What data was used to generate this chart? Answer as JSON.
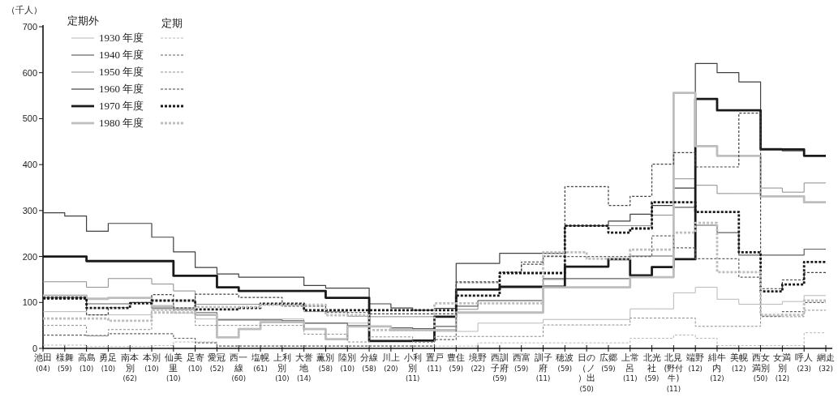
{
  "chart_data": {
    "type": "step",
    "ylabel": "（千人）",
    "legend": "top left",
    "ylim": [
      0,
      700
    ],
    "yticks": [
      0,
      100,
      200,
      300,
      400,
      500,
      600,
      700
    ],
    "annotations": [
      "定期外",
      "定期"
    ],
    "categories": [
      "池田 (04)",
      "様舞 (59)",
      "高島 (10)",
      "勇足 (10)",
      "南本別 (62)",
      "本別 (10)",
      "仙美里 (10)",
      "足寄 (10)",
      "愛冠 (52)",
      "西一線 (60)",
      "塩幌 (61)",
      "上利別 (10)",
      "大誉地 (14)",
      "薫別 (58)",
      "陸別 (10)",
      "分線 (58)",
      "川上 (20)",
      "小利別 (11)",
      "置戸 (11)",
      "豊住 (59)",
      "境野 (22)",
      "西訓子府 (59)",
      "西富 (59)",
      "訓子府 (11)",
      "穂波 (59)",
      "日の（ノ）出 (50)",
      "広郷 (59)",
      "上常呂 (11)",
      "北光社 (59)",
      "北見 (野付牛)(11)",
      "端野 (12)",
      "緋牛内 (12)",
      "美幌 (12)",
      "西女満別 (50)",
      "女満別 (12)",
      "呼人 (23)",
      "網走 (32)"
    ],
    "series": [
      {
        "name": "1930 年度",
        "color": "#b0b0b0",
        "line_style": "solid",
        "values": [
          80,
          80,
          73,
          73,
          73,
          85,
          77,
          64,
          64,
          64,
          64,
          64,
          55,
          55,
          55,
          48,
          43,
          43,
          37,
          37,
          55,
          55,
          55,
          63,
          63,
          63,
          63,
          86,
          86,
          121,
          133,
          107,
          96,
          96,
          102,
          115,
          115
        ]
      },
      {
        "name": "1940 年度",
        "color": "#606060",
        "line_style": "solid",
        "values": [
          110,
          110,
          97,
          97,
          100,
          88,
          85,
          78,
          62,
          62,
          62,
          60,
          55,
          55,
          50,
          48,
          45,
          43,
          48,
          92,
          104,
          104,
          104,
          152,
          152,
          152,
          152,
          201,
          201,
          307,
          268,
          252,
          203,
          203,
          203,
          216,
          216
        ]
      },
      {
        "name": "1950 年度",
        "color": "#8c8c8c",
        "line_style": "solid",
        "values": [
          145,
          145,
          133,
          152,
          152,
          140,
          125,
          96,
          96,
          96,
          96,
          96,
          80,
          80,
          70,
          69,
          69,
          69,
          69,
          85,
          104,
          104,
          104,
          150,
          267,
          267,
          267,
          267,
          290,
          369,
          355,
          337,
          337,
          349,
          340,
          360,
          360
        ]
      },
      {
        "name": "1960 年度",
        "color": "#404040",
        "line_style": "solid",
        "values": [
          295,
          288,
          255,
          272,
          272,
          242,
          210,
          176,
          162,
          155,
          155,
          155,
          137,
          131,
          131,
          97,
          88,
          83,
          87,
          185,
          185,
          207,
          207,
          207,
          267,
          267,
          277,
          292,
          311,
          349,
          620,
          600,
          580,
          435,
          430,
          420,
          420
        ]
      },
      {
        "name": "1970 年度",
        "color": "#1a1a1a",
        "line_style": "solid",
        "values": [
          200,
          200,
          190,
          190,
          190,
          190,
          158,
          158,
          133,
          125,
          125,
          125,
          125,
          110,
          110,
          16,
          16,
          17,
          69,
          128,
          128,
          134,
          134,
          134,
          178,
          178,
          194,
          159,
          177,
          194,
          543,
          518,
          518,
          433,
          433,
          419,
          419
        ]
      },
      {
        "name": "1980 年度",
        "color": "#bdbdbd",
        "line_style": "solid",
        "values": [
          115,
          115,
          108,
          110,
          110,
          92,
          87,
          73,
          24,
          42,
          57,
          57,
          42,
          20,
          48,
          48,
          40,
          40,
          40,
          78,
          78,
          78,
          78,
          133,
          133,
          133,
          133,
          155,
          155,
          556,
          440,
          419,
          419,
          331,
          331,
          318,
          318
        ]
      },
      {
        "color": "#b0b0b0",
        "line_style": "dashed",
        "values": [
          7,
          7,
          4,
          4,
          4,
          6,
          14,
          14,
          5,
          5,
          5,
          5,
          5,
          5,
          5,
          5,
          5,
          5,
          5,
          5,
          12,
          12,
          12,
          12,
          12,
          12,
          12,
          22,
          22,
          29,
          22,
          6,
          6,
          6,
          6,
          34,
          34
        ]
      },
      {
        "color": "#606060",
        "line_style": "dashed",
        "values": [
          29,
          29,
          28,
          32,
          32,
          32,
          22,
          12,
          5,
          5,
          5,
          5,
          5,
          5,
          5,
          5,
          5,
          5,
          19,
          143,
          143,
          165,
          188,
          200,
          200,
          200,
          200,
          200,
          245,
          219,
          195,
          195,
          155,
          70,
          80,
          100,
          100
        ]
      },
      {
        "color": "#8c8c8c",
        "line_style": "dashed",
        "values": [
          50,
          50,
          27,
          41,
          41,
          83,
          83,
          50,
          50,
          50,
          50,
          50,
          31,
          31,
          14,
          25,
          25,
          13,
          26,
          26,
          26,
          26,
          26,
          51,
          51,
          51,
          51,
          66,
          66,
          66,
          48,
          48,
          48,
          69,
          69,
          83,
          83
        ]
      },
      {
        "color": "#404040",
        "line_style": "dashed",
        "values": [
          107,
          107,
          73,
          89,
          100,
          117,
          88,
          118,
          118,
          111,
          111,
          92,
          92,
          78,
          78,
          75,
          75,
          75,
          75,
          145,
          145,
          166,
          183,
          201,
          352,
          352,
          311,
          331,
          401,
          426,
          395,
          395,
          512,
          130,
          149,
          165,
          165
        ]
      },
      {
        "color": "#1a1a1a",
        "line_style": "dashed",
        "values": [
          110,
          110,
          88,
          88,
          98,
          104,
          104,
          85,
          85,
          88,
          97,
          97,
          83,
          83,
          83,
          83,
          83,
          83,
          83,
          115,
          115,
          164,
          164,
          164,
          267,
          267,
          252,
          261,
          318,
          318,
          297,
          297,
          209,
          124,
          139,
          188,
          188
        ]
      },
      {
        "color": "#bdbdbd",
        "line_style": "dashed",
        "values": [
          65,
          65,
          65,
          60,
          60,
          78,
          78,
          90,
          90,
          90,
          95,
          95,
          95,
          72,
          72,
          40,
          40,
          40,
          98,
          98,
          98,
          98,
          98,
          209,
          209,
          195,
          195,
          215,
          215,
          252,
          273,
          166,
          166,
          73,
          73,
          104,
          104
        ]
      }
    ]
  }
}
